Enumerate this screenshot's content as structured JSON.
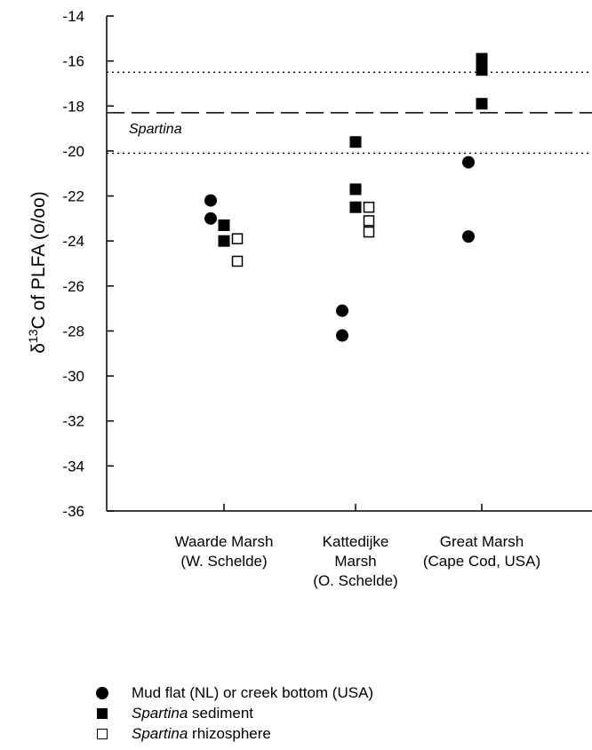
{
  "chart_data": {
    "type": "scatter",
    "title": "",
    "ylabel": "δ13C of PLFA (o/oo)",
    "ylabel_parts": {
      "prefix": "δ",
      "sup": "13",
      "rest": "C of PLFA (o/oo)"
    },
    "ylim": [
      -36,
      -14
    ],
    "yticks": [
      "-14",
      "-16",
      "-18",
      "-20",
      "-22",
      "-24",
      "-26",
      "-28",
      "-30",
      "-32",
      "-34",
      "-36"
    ],
    "categories": [
      {
        "lines": [
          "Waarde Marsh",
          "(W. Schelde)"
        ]
      },
      {
        "lines": [
          "Kattedijke",
          "Marsh",
          "(O. Schelde)"
        ]
      },
      {
        "lines": [
          "Great Marsh",
          "(Cape Cod, USA)"
        ]
      }
    ],
    "series": [
      {
        "name": "Mud flat (NL) or creek bottom (USA)",
        "marker": "circle",
        "points": [
          {
            "category": 0,
            "offset": -1,
            "y": -22.2
          },
          {
            "category": 0,
            "offset": -1,
            "y": -23.0
          },
          {
            "category": 1,
            "offset": -1,
            "y": -27.1
          },
          {
            "category": 1,
            "offset": -1,
            "y": -28.2
          },
          {
            "category": 2,
            "offset": -1,
            "y": -20.5
          },
          {
            "category": 2,
            "offset": -1,
            "y": -23.8
          }
        ]
      },
      {
        "name": "Spartina sediment",
        "marker": "square-filled",
        "points": [
          {
            "category": 0,
            "offset": 0,
            "y": -23.3
          },
          {
            "category": 0,
            "offset": 0,
            "y": -24.0
          },
          {
            "category": 1,
            "offset": 0,
            "y": -19.6
          },
          {
            "category": 1,
            "offset": 0,
            "y": -21.7
          },
          {
            "category": 1,
            "offset": 0,
            "y": -22.5
          },
          {
            "category": 2,
            "offset": 0,
            "y": -15.9
          },
          {
            "category": 2,
            "offset": 0,
            "y": -16.4
          },
          {
            "category": 2,
            "offset": 0,
            "y": -17.9
          }
        ]
      },
      {
        "name": "Spartina rhizosphere",
        "marker": "square-open",
        "points": [
          {
            "category": 0,
            "offset": 1,
            "y": -23.9
          },
          {
            "category": 0,
            "offset": 1,
            "y": -24.9
          },
          {
            "category": 1,
            "offset": 1,
            "y": -22.5
          },
          {
            "category": 1,
            "offset": 1,
            "y": -23.1
          },
          {
            "category": 1,
            "offset": 1,
            "y": -23.6
          }
        ]
      }
    ],
    "reference_lines": [
      {
        "y": -18.3,
        "style": "dashed",
        "label": "Spartina"
      },
      {
        "y": -16.5,
        "style": "dotted"
      },
      {
        "y": -20.1,
        "style": "dotted"
      }
    ]
  },
  "legend": {
    "items": [
      {
        "marker": "circle",
        "text": "Mud flat (NL) or creek bottom (USA)"
      },
      {
        "marker": "square-filled",
        "italic": "Spartina",
        "text": " sediment"
      },
      {
        "marker": "square-open",
        "italic": "Spartina",
        "text": " rhizosphere"
      }
    ]
  }
}
